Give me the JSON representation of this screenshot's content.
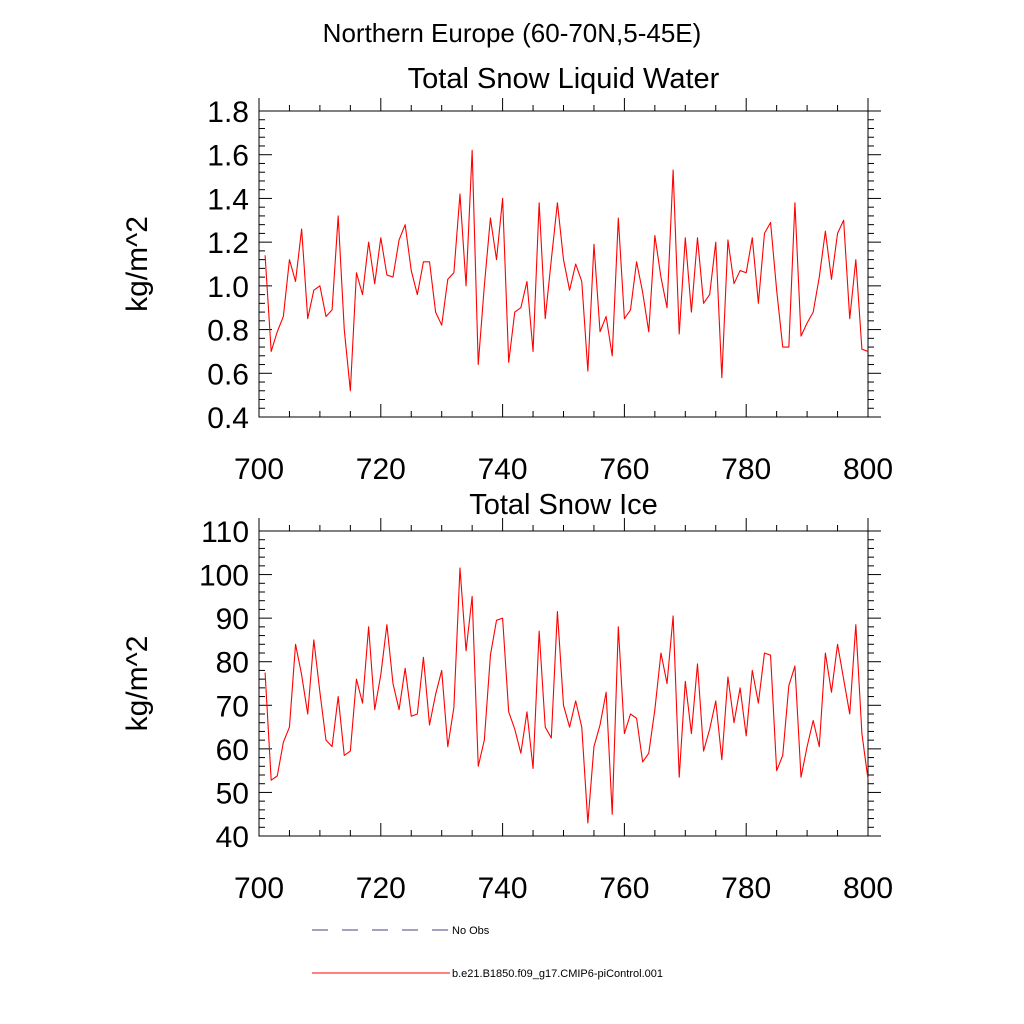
{
  "figure": {
    "suptitle": "Northern Europe (60-70N,5-45E)",
    "colors": {
      "model": "#ff0000",
      "obs": "#6b6b9b",
      "axis": "#000000",
      "background": "#ffffff"
    },
    "legend": {
      "placement": "bottom-center",
      "entries": [
        {
          "label": "No Obs",
          "style": "dashed",
          "color": "#6b6b9b"
        },
        {
          "label": "b.e21.B1850.f09_g17.CMIP6-piControl.001",
          "style": "solid",
          "color": "#ff0000"
        }
      ]
    }
  },
  "chart_data": [
    {
      "type": "line",
      "title": "Total Snow Liquid Water",
      "xlabel": "",
      "ylabel": "kg/m^2",
      "xlim": [
        700,
        800
      ],
      "ylim": [
        0.4,
        1.8
      ],
      "xticks": [
        700,
        720,
        740,
        760,
        780,
        800
      ],
      "xtick_labels": [
        "700",
        "720",
        "740",
        "760",
        "780",
        "800"
      ],
      "yticks": [
        0.4,
        0.6,
        0.8,
        1.0,
        1.2,
        1.4,
        1.6,
        1.8
      ],
      "ytick_labels": [
        "0.4",
        "0.6",
        "0.8",
        "1.0",
        "1.2",
        "1.4",
        "1.6",
        "1.8"
      ],
      "grid": false,
      "x": [
        701,
        702,
        703,
        704,
        705,
        706,
        707,
        708,
        709,
        710,
        711,
        712,
        713,
        714,
        715,
        716,
        717,
        718,
        719,
        720,
        721,
        722,
        723,
        724,
        725,
        726,
        727,
        728,
        729,
        730,
        731,
        732,
        733,
        734,
        735,
        736,
        737,
        738,
        739,
        740,
        741,
        742,
        743,
        744,
        745,
        746,
        747,
        748,
        749,
        750,
        751,
        752,
        753,
        754,
        755,
        756,
        757,
        758,
        759,
        760,
        761,
        762,
        763,
        764,
        765,
        766,
        767,
        768,
        769,
        770,
        771,
        772,
        773,
        774,
        775,
        776,
        777,
        778,
        779,
        780,
        781,
        782,
        783,
        784,
        785,
        786,
        787,
        788,
        789,
        790,
        791,
        792,
        793,
        794,
        795,
        796,
        797,
        798,
        799,
        800
      ],
      "series": [
        {
          "name": "b.e21.B1850.f09_g17.CMIP6-piControl.001",
          "color": "#ff0000",
          "values": [
            1.14,
            0.7,
            0.79,
            0.86,
            1.12,
            1.02,
            1.26,
            0.85,
            0.98,
            1.0,
            0.86,
            0.89,
            1.32,
            0.8,
            0.52,
            1.06,
            0.96,
            1.2,
            1.01,
            1.22,
            1.05,
            1.04,
            1.21,
            1.28,
            1.07,
            0.96,
            1.11,
            1.11,
            0.88,
            0.82,
            1.03,
            1.06,
            1.42,
            1.0,
            1.62,
            0.64,
            1.0,
            1.31,
            1.12,
            1.4,
            0.65,
            0.88,
            0.9,
            1.02,
            0.7,
            1.38,
            0.85,
            1.12,
            1.38,
            1.12,
            0.98,
            1.1,
            1.02,
            0.61,
            1.19,
            0.79,
            0.86,
            0.68,
            1.31,
            0.85,
            0.89,
            1.11,
            0.97,
            0.79,
            1.23,
            1.04,
            0.9,
            1.53,
            0.78,
            1.22,
            0.88,
            1.22,
            0.92,
            0.96,
            1.2,
            0.58,
            1.21,
            1.01,
            1.07,
            1.06,
            1.22,
            0.92,
            1.24,
            1.29,
            0.98,
            0.72,
            0.72,
            1.38,
            0.77,
            0.83,
            0.88,
            1.04,
            1.25,
            1.03,
            1.24,
            1.3,
            0.85,
            1.12,
            0.71,
            0.7
          ]
        }
      ]
    },
    {
      "type": "line",
      "title": "Total Snow Ice",
      "xlabel": "",
      "ylabel": "kg/m^2",
      "xlim": [
        700,
        800
      ],
      "ylim": [
        40,
        110
      ],
      "xticks": [
        700,
        720,
        740,
        760,
        780,
        800
      ],
      "xtick_labels": [
        "700",
        "720",
        "740",
        "760",
        "780",
        "800"
      ],
      "yticks": [
        40,
        50,
        60,
        70,
        80,
        90,
        100,
        110
      ],
      "ytick_labels": [
        "40",
        "50",
        "60",
        "70",
        "80",
        "90",
        "100",
        "110"
      ],
      "grid": false,
      "x": [
        701,
        702,
        703,
        704,
        705,
        706,
        707,
        708,
        709,
        710,
        711,
        712,
        713,
        714,
        715,
        716,
        717,
        718,
        719,
        720,
        721,
        722,
        723,
        724,
        725,
        726,
        727,
        728,
        729,
        730,
        731,
        732,
        733,
        734,
        735,
        736,
        737,
        738,
        739,
        740,
        741,
        742,
        743,
        744,
        745,
        746,
        747,
        748,
        749,
        750,
        751,
        752,
        753,
        754,
        755,
        756,
        757,
        758,
        759,
        760,
        761,
        762,
        763,
        764,
        765,
        766,
        767,
        768,
        769,
        770,
        771,
        772,
        773,
        774,
        775,
        776,
        777,
        778,
        779,
        780,
        781,
        782,
        783,
        784,
        785,
        786,
        787,
        788,
        789,
        790,
        791,
        792,
        793,
        794,
        795,
        796,
        797,
        798,
        799,
        800
      ],
      "series": [
        {
          "name": "b.e21.B1850.f09_g17.CMIP6-piControl.001",
          "color": "#ff0000",
          "values": [
            77.5,
            52.8,
            53.8,
            61.5,
            65,
            84,
            77,
            68,
            85,
            73,
            62,
            60.5,
            72,
            58.5,
            59.5,
            76,
            70.5,
            88,
            69,
            77,
            88.5,
            75,
            69,
            78.5,
            67.5,
            68,
            81,
            65.5,
            72.5,
            78,
            60.5,
            69.5,
            101.5,
            82.5,
            95,
            56,
            62,
            81.5,
            89.5,
            90,
            68.5,
            64.5,
            59,
            68.5,
            55.5,
            87,
            65,
            62.5,
            91.5,
            70,
            65,
            71,
            65,
            43,
            60.5,
            65.5,
            73,
            45,
            88,
            63.5,
            68,
            67,
            57,
            59,
            69,
            82,
            75,
            90.5,
            53.5,
            75.5,
            63.5,
            79.5,
            59.5,
            64.5,
            71,
            57.5,
            76.5,
            66,
            74,
            63,
            78,
            70.5,
            82,
            81.5,
            55,
            58.5,
            74.5,
            79,
            53.5,
            60.5,
            66.5,
            60.5,
            82,
            73,
            84,
            76,
            68,
            88.5,
            63.5,
            53
          ]
        }
      ]
    }
  ]
}
